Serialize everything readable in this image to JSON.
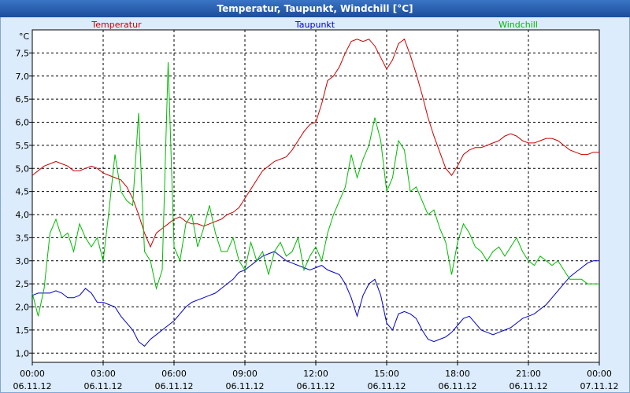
{
  "window": {
    "title": "Temperatur, Taupunkt, Windchill [°C]"
  },
  "chart_data": {
    "type": "line",
    "title": "Temperatur, Taupunkt, Windchill [°C]",
    "ylabel": "°C",
    "xlabel": "",
    "ylim": [
      0.8,
      8.0
    ],
    "xlim": [
      0,
      24
    ],
    "grid": true,
    "y_ticks": [
      "1,0",
      "1,5",
      "2,0",
      "2,5",
      "3,0",
      "3,5",
      "4,0",
      "4,5",
      "5,0",
      "5,5",
      "6,0",
      "6,5",
      "7,0",
      "7,5"
    ],
    "y_tick_values": [
      1.0,
      1.5,
      2.0,
      2.5,
      3.0,
      3.5,
      4.0,
      4.5,
      5.0,
      5.5,
      6.0,
      6.5,
      7.0,
      7.5
    ],
    "x_ticks": [
      {
        "time": "00:00",
        "date": "06.11.12",
        "hour": 0
      },
      {
        "time": "03:00",
        "date": "06.11.12",
        "hour": 3
      },
      {
        "time": "06:00",
        "date": "06.11.12",
        "hour": 6
      },
      {
        "time": "09:00",
        "date": "06.11.12",
        "hour": 9
      },
      {
        "time": "12:00",
        "date": "06.11.12",
        "hour": 12
      },
      {
        "time": "15:00",
        "date": "06.11.12",
        "hour": 15
      },
      {
        "time": "18:00",
        "date": "06.11.12",
        "hour": 18
      },
      {
        "time": "21:00",
        "date": "06.11.12",
        "hour": 21
      },
      {
        "time": "00:00",
        "date": "07.11.12",
        "hour": 24
      }
    ],
    "series": [
      {
        "name": "Temperatur",
        "color": "#cc0000",
        "x": [
          0,
          0.25,
          0.5,
          0.75,
          1,
          1.25,
          1.5,
          1.75,
          2,
          2.25,
          2.5,
          2.75,
          3,
          3.25,
          3.5,
          3.75,
          4,
          4.25,
          4.5,
          4.75,
          5,
          5.25,
          5.5,
          5.75,
          6,
          6.25,
          6.5,
          6.75,
          7,
          7.25,
          7.5,
          7.75,
          8,
          8.25,
          8.5,
          8.75,
          9,
          9.25,
          9.5,
          9.75,
          10,
          10.25,
          10.5,
          10.75,
          11,
          11.25,
          11.5,
          11.75,
          12,
          12.25,
          12.5,
          12.75,
          13,
          13.25,
          13.5,
          13.75,
          14,
          14.25,
          14.5,
          14.75,
          15,
          15.25,
          15.5,
          15.75,
          16,
          16.25,
          16.5,
          16.75,
          17,
          17.25,
          17.5,
          17.75,
          18,
          18.25,
          18.5,
          18.75,
          19,
          19.25,
          19.5,
          19.75,
          20,
          20.25,
          20.5,
          20.75,
          21,
          21.25,
          21.5,
          21.75,
          22,
          22.25,
          22.5,
          22.75,
          23,
          23.25,
          23.5,
          23.75,
          24
        ],
        "values": [
          4.85,
          4.95,
          5.05,
          5.1,
          5.15,
          5.1,
          5.05,
          4.95,
          4.95,
          5.0,
          5.05,
          5.0,
          4.9,
          4.85,
          4.8,
          4.75,
          4.6,
          4.35,
          4.0,
          3.6,
          3.3,
          3.6,
          3.7,
          3.8,
          3.9,
          3.95,
          3.85,
          3.8,
          3.8,
          3.75,
          3.8,
          3.85,
          3.9,
          4.0,
          4.05,
          4.15,
          4.35,
          4.55,
          4.75,
          4.95,
          5.05,
          5.15,
          5.2,
          5.25,
          5.4,
          5.6,
          5.8,
          5.95,
          6.0,
          6.4,
          6.9,
          7.0,
          7.2,
          7.5,
          7.75,
          7.8,
          7.75,
          7.8,
          7.65,
          7.4,
          7.15,
          7.35,
          7.7,
          7.8,
          7.45,
          7.05,
          6.6,
          6.1,
          5.7,
          5.35,
          5.0,
          4.85,
          5.05,
          5.3,
          5.4,
          5.45,
          5.45,
          5.5,
          5.55,
          5.6,
          5.7,
          5.75,
          5.7,
          5.6,
          5.55,
          5.55,
          5.6,
          5.65,
          5.65,
          5.6,
          5.5,
          5.4,
          5.35,
          5.3,
          5.3,
          5.35,
          5.35
        ]
      },
      {
        "name": "Taupunkt",
        "color": "#0000cc",
        "x": [
          0,
          0.25,
          0.5,
          0.75,
          1,
          1.25,
          1.5,
          1.75,
          2,
          2.25,
          2.5,
          2.75,
          3,
          3.25,
          3.5,
          3.75,
          4,
          4.25,
          4.5,
          4.75,
          5,
          5.25,
          5.5,
          5.75,
          6,
          6.25,
          6.5,
          6.75,
          7,
          7.25,
          7.5,
          7.75,
          8,
          8.25,
          8.5,
          8.75,
          9,
          9.25,
          9.5,
          9.75,
          10,
          10.25,
          10.5,
          10.75,
          11,
          11.25,
          11.5,
          11.75,
          12,
          12.25,
          12.5,
          12.75,
          13,
          13.25,
          13.5,
          13.75,
          14,
          14.25,
          14.5,
          14.75,
          15,
          15.25,
          15.5,
          15.75,
          16,
          16.25,
          16.5,
          16.75,
          17,
          17.25,
          17.5,
          17.75,
          18,
          18.25,
          18.5,
          18.75,
          19,
          19.25,
          19.5,
          19.75,
          20,
          20.25,
          20.5,
          20.75,
          21,
          21.25,
          21.5,
          21.75,
          22,
          22.25,
          22.5,
          22.75,
          23,
          23.25,
          23.5,
          23.75,
          24
        ],
        "values": [
          2.25,
          2.3,
          2.3,
          2.3,
          2.35,
          2.3,
          2.2,
          2.2,
          2.25,
          2.4,
          2.3,
          2.1,
          2.1,
          2.05,
          2.0,
          1.8,
          1.65,
          1.5,
          1.25,
          1.15,
          1.3,
          1.4,
          1.5,
          1.6,
          1.7,
          1.85,
          2.0,
          2.1,
          2.15,
          2.2,
          2.25,
          2.3,
          2.4,
          2.5,
          2.6,
          2.75,
          2.8,
          2.9,
          3.0,
          3.1,
          3.15,
          3.2,
          3.1,
          3.0,
          2.95,
          2.9,
          2.85,
          2.8,
          2.85,
          2.9,
          2.8,
          2.75,
          2.7,
          2.5,
          2.2,
          1.8,
          2.25,
          2.5,
          2.6,
          2.25,
          1.65,
          1.5,
          1.85,
          1.9,
          1.85,
          1.75,
          1.5,
          1.3,
          1.25,
          1.3,
          1.35,
          1.45,
          1.6,
          1.75,
          1.8,
          1.65,
          1.5,
          1.45,
          1.4,
          1.45,
          1.5,
          1.55,
          1.65,
          1.75,
          1.8,
          1.85,
          1.95,
          2.05,
          2.2,
          2.35,
          2.5,
          2.65,
          2.75,
          2.85,
          2.95,
          3.0,
          3.0
        ]
      },
      {
        "name": "Windchill",
        "color": "#00bb00",
        "x": [
          0,
          0.25,
          0.5,
          0.75,
          1,
          1.25,
          1.5,
          1.75,
          2,
          2.25,
          2.5,
          2.75,
          3,
          3.25,
          3.5,
          3.75,
          4,
          4.25,
          4.5,
          4.75,
          5,
          5.25,
          5.5,
          5.75,
          6,
          6.25,
          6.5,
          6.75,
          7,
          7.25,
          7.5,
          7.75,
          8,
          8.25,
          8.5,
          8.75,
          9,
          9.25,
          9.5,
          9.75,
          10,
          10.25,
          10.5,
          10.75,
          11,
          11.25,
          11.5,
          11.75,
          12,
          12.25,
          12.5,
          12.75,
          13,
          13.25,
          13.5,
          13.75,
          14,
          14.25,
          14.5,
          14.75,
          15,
          15.25,
          15.5,
          15.75,
          16,
          16.25,
          16.5,
          16.75,
          17,
          17.25,
          17.5,
          17.75,
          18,
          18.25,
          18.5,
          18.75,
          19,
          19.25,
          19.5,
          19.75,
          20,
          20.25,
          20.5,
          20.75,
          21,
          21.25,
          21.5,
          21.75,
          22,
          22.25,
          22.5,
          22.75,
          23,
          23.25,
          23.5,
          23.75,
          24
        ],
        "values": [
          2.3,
          1.8,
          2.4,
          3.6,
          3.9,
          3.5,
          3.6,
          3.2,
          3.8,
          3.5,
          3.3,
          3.5,
          3.0,
          4.1,
          5.3,
          4.5,
          4.3,
          4.2,
          6.2,
          3.2,
          3.0,
          2.4,
          2.8,
          7.3,
          3.3,
          3.0,
          3.8,
          4.0,
          3.3,
          3.7,
          4.2,
          3.6,
          3.2,
          3.2,
          3.5,
          3.0,
          2.8,
          3.4,
          3.0,
          3.2,
          2.7,
          3.2,
          3.4,
          3.1,
          3.2,
          3.5,
          2.8,
          3.1,
          3.3,
          3.0,
          3.6,
          4.0,
          4.3,
          4.6,
          5.3,
          4.8,
          5.2,
          5.5,
          6.1,
          5.6,
          4.5,
          4.8,
          5.6,
          5.4,
          4.5,
          4.6,
          4.3,
          4.0,
          4.1,
          3.7,
          3.4,
          2.7,
          3.4,
          3.8,
          3.6,
          3.3,
          3.2,
          3.0,
          3.2,
          3.3,
          3.1,
          3.3,
          3.5,
          3.2,
          3.0,
          2.9,
          3.1,
          3.0,
          2.9,
          3.0,
          2.8,
          2.6,
          2.6,
          2.6,
          2.5,
          2.5,
          2.5
        ]
      }
    ]
  }
}
